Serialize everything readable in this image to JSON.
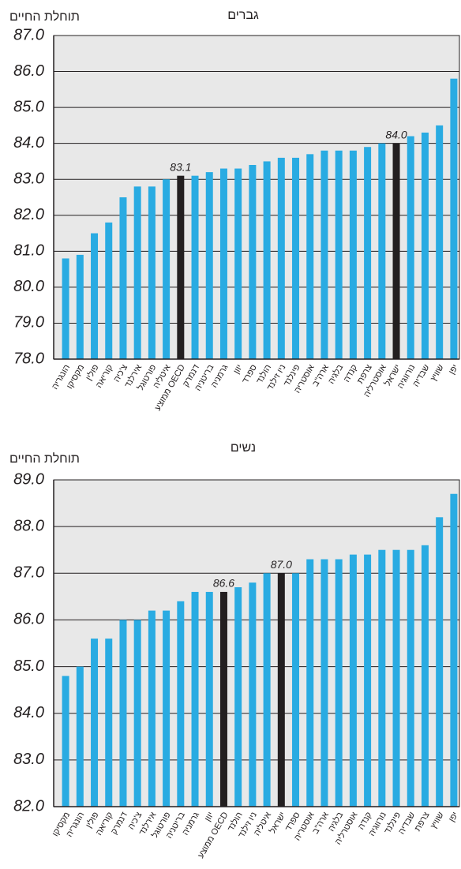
{
  "chart_data": [
    {
      "type": "bar",
      "title": "גברים",
      "y_label": "תוחלת החיים",
      "categories": [
        "הונגריה",
        "מקסיקו",
        "פולין",
        "קוריאה",
        "צ'כיה",
        "אירלנד",
        "פורטוגל",
        "איטליה",
        "ממוצע OECD",
        "דנמרק",
        "בריטניה",
        "גרמניה",
        "יוון",
        "ספרד",
        "הולנד",
        "ניו זילנד",
        "פינלנד",
        "אוסטריה",
        "ארה\"ב",
        "בלגיה",
        "קנדה",
        "צרפת",
        "אוסטרליה",
        "ישראל",
        "נורווגיה",
        "שבדיה",
        "שוויץ",
        "יפן"
      ],
      "values": [
        80.8,
        80.9,
        81.5,
        81.8,
        82.5,
        82.8,
        82.8,
        83.0,
        83.1,
        83.1,
        83.2,
        83.3,
        83.3,
        83.4,
        83.5,
        83.6,
        83.6,
        83.7,
        83.8,
        83.8,
        83.8,
        83.9,
        84.0,
        84.0,
        84.2,
        84.3,
        84.5,
        85.8
      ],
      "value_labels": [
        null,
        null,
        null,
        null,
        null,
        null,
        null,
        null,
        "83.1",
        null,
        null,
        null,
        null,
        null,
        null,
        null,
        null,
        null,
        null,
        null,
        null,
        null,
        null,
        "84.0",
        null,
        null,
        null,
        null
      ],
      "colors": [
        "#29abe2",
        "#29abe2",
        "#29abe2",
        "#29abe2",
        "#29abe2",
        "#29abe2",
        "#29abe2",
        "#29abe2",
        "#231f20",
        "#29abe2",
        "#29abe2",
        "#29abe2",
        "#29abe2",
        "#29abe2",
        "#29abe2",
        "#29abe2",
        "#29abe2",
        "#29abe2",
        "#29abe2",
        "#29abe2",
        "#29abe2",
        "#29abe2",
        "#29abe2",
        "#231f20",
        "#29abe2",
        "#29abe2",
        "#29abe2",
        "#29abe2"
      ],
      "ylim": [
        78,
        87
      ],
      "yticks": [
        {
          "value": 78,
          "label": "78.0"
        },
        {
          "value": 79,
          "label": "79.0"
        },
        {
          "value": 80,
          "label": "80.0"
        },
        {
          "value": 81,
          "label": "81.0"
        },
        {
          "value": 82,
          "label": "82.0"
        },
        {
          "value": 83,
          "label": "83.0"
        },
        {
          "value": 84,
          "label": "84.0"
        },
        {
          "value": 85,
          "label": "85.0"
        },
        {
          "value": 86,
          "label": "86.0"
        },
        {
          "value": 87,
          "label": "87.0"
        }
      ],
      "grid": true
    },
    {
      "type": "bar",
      "title": "נשים",
      "y_label": "תוחלת החיים",
      "categories": [
        "מקסיקו",
        "הונגריה",
        "פולין",
        "קוריאה",
        "דנמרק",
        "צ'כיה",
        "אירלנד",
        "פורטוגל",
        "בריטניה",
        "גרמניה",
        "יוון",
        "ממוצע OECD",
        "הולנד",
        "ניו זילנד",
        "איטליה",
        "ישראל",
        "ספרד",
        "אוסטריה",
        "ארה\"ב",
        "בלגיה",
        "אוסטרליה",
        "קנדה",
        "נורווגיה",
        "פינלנד",
        "שבדיה",
        "צרפת",
        "שוויץ",
        "יפן"
      ],
      "values": [
        84.8,
        85.0,
        85.6,
        85.6,
        86.0,
        86.0,
        86.2,
        86.2,
        86.4,
        86.6,
        86.6,
        86.6,
        86.7,
        86.8,
        87.0,
        87.0,
        87.0,
        87.3,
        87.3,
        87.3,
        87.4,
        87.4,
        87.5,
        87.5,
        87.5,
        87.6,
        88.2,
        88.7
      ],
      "value_labels": [
        null,
        null,
        null,
        null,
        null,
        null,
        null,
        null,
        null,
        null,
        null,
        "86.6",
        null,
        null,
        null,
        "87.0",
        null,
        null,
        null,
        null,
        null,
        null,
        null,
        null,
        null,
        null,
        null,
        null
      ],
      "colors": [
        "#29abe2",
        "#29abe2",
        "#29abe2",
        "#29abe2",
        "#29abe2",
        "#29abe2",
        "#29abe2",
        "#29abe2",
        "#29abe2",
        "#29abe2",
        "#29abe2",
        "#231f20",
        "#29abe2",
        "#29abe2",
        "#29abe2",
        "#231f20",
        "#29abe2",
        "#29abe2",
        "#29abe2",
        "#29abe2",
        "#29abe2",
        "#29abe2",
        "#29abe2",
        "#29abe2",
        "#29abe2",
        "#29abe2",
        "#29abe2",
        "#29abe2"
      ],
      "ylim": [
        82,
        89
      ],
      "yticks": [
        {
          "value": 82,
          "label": "82.0"
        },
        {
          "value": 83,
          "label": "83.0"
        },
        {
          "value": 84,
          "label": "84.0"
        },
        {
          "value": 85,
          "label": "85.0"
        },
        {
          "value": 86,
          "label": "86.0"
        },
        {
          "value": 87,
          "label": "87.0"
        },
        {
          "value": 88,
          "label": "88.0"
        },
        {
          "value": 89,
          "label": "89.0"
        }
      ],
      "grid": true
    }
  ]
}
